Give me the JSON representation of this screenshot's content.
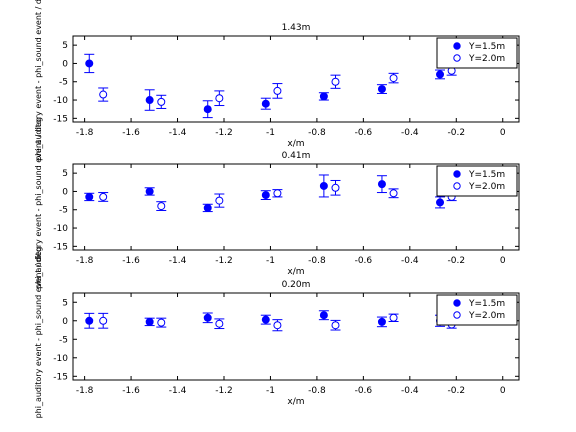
{
  "chart_data": [
    {
      "type": "scatter",
      "title": "1.43m",
      "xlabel": "x/m",
      "ylabel": "phi_auditory event - phi_sound event / deg",
      "xlim": [
        -1.85,
        0.07
      ],
      "ylim": [
        -16,
        7.5
      ],
      "xticks": [
        "-1.8",
        "-1.6",
        "-1.4",
        "-1.2",
        "-1",
        "-0.8",
        "-0.6",
        "-0.4",
        "-0.2",
        "0"
      ],
      "yticks": [
        "5",
        "0",
        "-5",
        "-10",
        "-15"
      ],
      "legend_position": "top-right",
      "series": [
        {
          "name": "Y=1.5m",
          "marker": "filled-circle",
          "color": "#0000ff",
          "x": [
            -1.78,
            -1.52,
            -1.27,
            -1.02,
            -0.77,
            -0.52,
            -0.27
          ],
          "y": [
            0,
            -10,
            -12.5,
            -11,
            -9,
            -7,
            -3
          ],
          "err": [
            2.5,
            2.8,
            2.3,
            1.5,
            1,
            1.2,
            1.2
          ]
        },
        {
          "name": "Y=2.0m",
          "marker": "open-circle",
          "color": "#0000ff",
          "x": [
            -1.72,
            -1.47,
            -1.22,
            -0.97,
            -0.72,
            -0.47,
            -0.22
          ],
          "y": [
            -8.5,
            -10.5,
            -9.5,
            -7.5,
            -5,
            -4,
            -2
          ],
          "err": [
            1.8,
            1.8,
            2,
            2,
            1.8,
            1.3,
            1.2
          ]
        }
      ]
    },
    {
      "type": "scatter",
      "title": "0.41m",
      "xlabel": "x/m",
      "ylabel": "phi_auditory event - phi_sound event / deg",
      "xlim": [
        -1.85,
        0.07
      ],
      "ylim": [
        -16,
        7.5
      ],
      "xticks": [
        "-1.8",
        "-1.6",
        "-1.4",
        "-1.2",
        "-1",
        "-0.8",
        "-0.6",
        "-0.4",
        "-0.2",
        "0"
      ],
      "yticks": [
        "5",
        "0",
        "-5",
        "-10",
        "-15"
      ],
      "legend_position": "top-right",
      "series": [
        {
          "name": "Y=1.5m",
          "marker": "filled-circle",
          "color": "#0000ff",
          "x": [
            -1.78,
            -1.52,
            -1.27,
            -1.02,
            -0.77,
            -0.52,
            -0.27
          ],
          "y": [
            -1.5,
            0,
            -4.5,
            -1,
            1.5,
            2,
            -3
          ],
          "err": [
            1,
            1,
            1,
            1.2,
            3,
            2.3,
            1.5
          ]
        },
        {
          "name": "Y=2.0m",
          "marker": "open-circle",
          "color": "#0000ff",
          "x": [
            -1.72,
            -1.47,
            -1.22,
            -0.97,
            -0.72,
            -0.47,
            -0.22
          ],
          "y": [
            -1.5,
            -4,
            -2.5,
            -0.5,
            1,
            -0.5,
            -1.5
          ],
          "err": [
            1.2,
            1.2,
            1.8,
            1,
            2,
            1.2,
            1
          ]
        }
      ]
    },
    {
      "type": "scatter",
      "title": "0.20m",
      "xlabel": "x/m",
      "ylabel": "phi_auditory event - phi_sound event / deg",
      "xlim": [
        -1.85,
        0.07
      ],
      "ylim": [
        -16,
        7.5
      ],
      "xticks": [
        "-1.8",
        "-1.6",
        "-1.4",
        "-1.2",
        "-1",
        "-0.8",
        "-0.6",
        "-0.4",
        "-0.2",
        "0"
      ],
      "yticks": [
        "5",
        "0",
        "-5",
        "-10",
        "-15"
      ],
      "legend_position": "top-right",
      "series": [
        {
          "name": "Y=1.5m",
          "marker": "filled-circle",
          "color": "#0000ff",
          "x": [
            -1.78,
            -1.52,
            -1.27,
            -1.02,
            -0.77,
            -0.52,
            -0.27
          ],
          "y": [
            0,
            -0.3,
            0.8,
            0.3,
            1.5,
            -0.3,
            0
          ],
          "err": [
            2,
            1,
            1.3,
            1.2,
            1.2,
            1.3,
            1.5
          ]
        },
        {
          "name": "Y=2.0m",
          "marker": "open-circle",
          "color": "#0000ff",
          "x": [
            -1.72,
            -1.47,
            -1.22,
            -0.97,
            -0.72,
            -0.47,
            -0.22
          ],
          "y": [
            0,
            -0.5,
            -0.8,
            -1.2,
            -1.2,
            0.8,
            -1
          ],
          "err": [
            2,
            1.2,
            1.3,
            1.5,
            1.3,
            1,
            1
          ]
        }
      ]
    }
  ]
}
